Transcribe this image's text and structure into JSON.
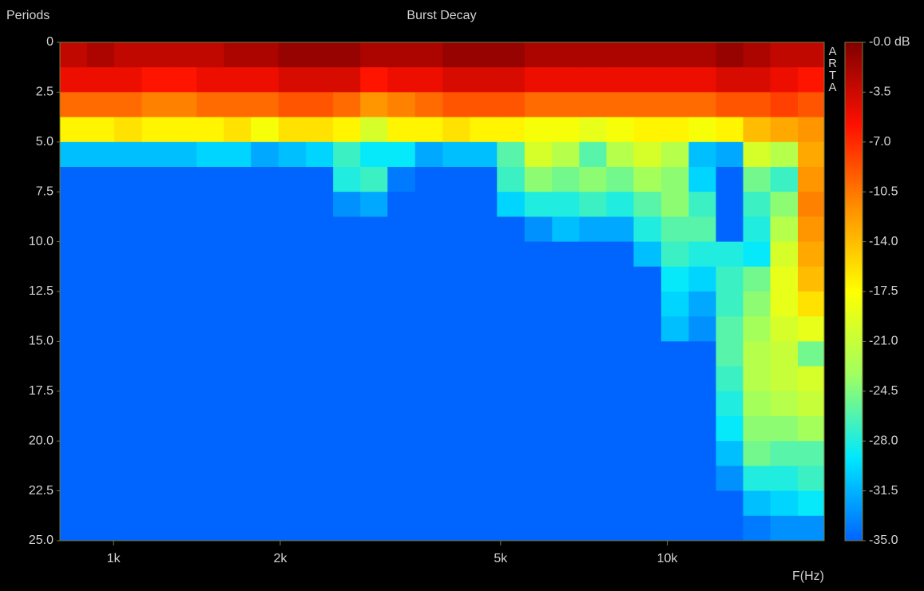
{
  "chart_data": {
    "type": "heatmap",
    "title": "Burst Decay",
    "y_label": "Periods",
    "x_label": "F(Hz)",
    "watermark": "ARTA",
    "x_log": true,
    "xlim": [
      800,
      19200
    ],
    "xticks": [
      {
        "value": 1000,
        "label": "1k"
      },
      {
        "value": 2000,
        "label": "2k"
      },
      {
        "value": 5000,
        "label": "5k"
      },
      {
        "value": 10000,
        "label": "10k"
      }
    ],
    "ylim": [
      0,
      25
    ],
    "y_inverted": true,
    "yticks": [
      0,
      2.5,
      {
        "value": 5,
        "label": "5.0"
      },
      7.5,
      {
        "value": 10,
        "label": "10.0"
      },
      12.5,
      {
        "value": 15,
        "label": "15.0"
      },
      17.5,
      {
        "value": 20,
        "label": "20.0"
      },
      22.5,
      {
        "value": 25,
        "label": "25.0"
      }
    ],
    "zlim": [
      -35,
      0
    ],
    "zticks": [
      {
        "value": 0,
        "label": "-0.0 dB"
      },
      -3.5,
      {
        "value": -7,
        "label": "-7.0"
      },
      -10.5,
      {
        "value": -14,
        "label": "-14.0"
      },
      -17.5,
      {
        "value": -21,
        "label": "-21.0"
      },
      -24.5,
      {
        "value": -28,
        "label": "-28.0"
      },
      -31.5,
      {
        "value": -35,
        "label": "-35.0"
      }
    ],
    "colormap": [
      "#0064ff",
      "#00e8ff",
      "#a0ff60",
      "#ffff00",
      "#ff9000",
      "#ff1000",
      "#800000"
    ],
    "x": [
      846,
      948,
      1061,
      1192,
      1335,
      1494,
      1673,
      1873,
      2104,
      2355,
      2637,
      2953,
      3306,
      3714,
      4157,
      4654,
      5211,
      5854,
      6554,
      7338,
      8216,
      9199,
      10333,
      11570,
      12954,
      14504,
      16238,
      18238
    ],
    "y": [
      0.625,
      1.875,
      3.125,
      4.375,
      5.625,
      6.875,
      8.125,
      9.375,
      10.625,
      11.875,
      13.125,
      14.375,
      15.625,
      16.875,
      18.125,
      19.375,
      20.625,
      21.875,
      23.125,
      24.375
    ],
    "z": [
      [
        -3,
        -5,
        -10,
        -17,
        -31,
        -35,
        -35,
        -35,
        -35,
        -35,
        -35,
        -35,
        -35,
        -35,
        -35,
        -35,
        -35,
        -35,
        -35,
        -35
      ],
      [
        -2,
        -5,
        -10,
        -17,
        -31,
        -35,
        -35,
        -35,
        -35,
        -35,
        -35,
        -35,
        -35,
        -35,
        -35,
        -35,
        -35,
        -35,
        -35,
        -35
      ],
      [
        -3,
        -5,
        -10,
        -16,
        -31,
        -35,
        -35,
        -35,
        -35,
        -35,
        -35,
        -35,
        -35,
        -35,
        -35,
        -35,
        -35,
        -35,
        -35,
        -35
      ],
      [
        -3,
        -6,
        -11,
        -17,
        -31,
        -35,
        -35,
        -35,
        -35,
        -35,
        -35,
        -35,
        -35,
        -35,
        -35,
        -35,
        -35,
        -35,
        -35,
        -35
      ],
      [
        -3,
        -6,
        -11,
        -17,
        -31,
        -35,
        -35,
        -35,
        -35,
        -35,
        -35,
        -35,
        -35,
        -35,
        -35,
        -35,
        -35,
        -35,
        -35,
        -35
      ],
      [
        -3,
        -5,
        -10,
        -17,
        -30,
        -35,
        -35,
        -35,
        -35,
        -35,
        -35,
        -35,
        -35,
        -35,
        -35,
        -35,
        -35,
        -35,
        -35,
        -35
      ],
      [
        -2,
        -5,
        -10,
        -16,
        -30,
        -35,
        -35,
        -35,
        -35,
        -35,
        -35,
        -35,
        -35,
        -35,
        -35,
        -35,
        -35,
        -35,
        -35,
        -35
      ],
      [
        -2,
        -5,
        -10,
        -18,
        -32,
        -35,
        -35,
        -35,
        -35,
        -35,
        -35,
        -35,
        -35,
        -35,
        -35,
        -35,
        -35,
        -35,
        -35,
        -35
      ],
      [
        -1,
        -4,
        -9,
        -16,
        -31,
        -35,
        -35,
        -35,
        -35,
        -35,
        -35,
        -35,
        -35,
        -35,
        -35,
        -35,
        -35,
        -35,
        -35,
        -35
      ],
      [
        -1,
        -4,
        -9,
        -16,
        -30,
        -35,
        -35,
        -35,
        -35,
        -35,
        -35,
        -35,
        -35,
        -35,
        -35,
        -35,
        -35,
        -35,
        -35,
        -35
      ],
      [
        -1,
        -4,
        -10,
        -17,
        -27,
        -28,
        -33,
        -35,
        -35,
        -35,
        -35,
        -35,
        -35,
        -35,
        -35,
        -35,
        -35,
        -35,
        -35,
        -35
      ],
      [
        -2,
        -6,
        -12,
        -20,
        -29,
        -27,
        -32,
        -35,
        -35,
        -35,
        -35,
        -35,
        -35,
        -35,
        -35,
        -35,
        -35,
        -35,
        -35,
        -35
      ],
      [
        -2,
        -5,
        -11,
        -17,
        -29,
        -34,
        -35,
        -35,
        -35,
        -35,
        -35,
        -35,
        -35,
        -35,
        -35,
        -35,
        -35,
        -35,
        -35,
        -35
      ],
      [
        -2,
        -5,
        -10,
        -17,
        -32,
        -35,
        -35,
        -35,
        -35,
        -35,
        -35,
        -35,
        -35,
        -35,
        -35,
        -35,
        -35,
        -35,
        -35,
        -35
      ],
      [
        -1,
        -4,
        -9,
        -16,
        -31,
        -35,
        -35,
        -35,
        -35,
        -35,
        -35,
        -35,
        -35,
        -35,
        -35,
        -35,
        -35,
        -35,
        -35,
        -35
      ],
      [
        -1,
        -4,
        -9,
        -17,
        -31,
        -35,
        -35,
        -35,
        -35,
        -35,
        -35,
        -35,
        -35,
        -35,
        -35,
        -35,
        -35,
        -35,
        -35,
        -35
      ],
      [
        -1,
        -4,
        -9,
        -17,
        -26,
        -27,
        -30,
        -35,
        -35,
        -35,
        -35,
        -35,
        -35,
        -35,
        -35,
        -35,
        -35,
        -35,
        -35,
        -35
      ],
      [
        -2,
        -5,
        -10,
        -18,
        -20,
        -24,
        -28,
        -33,
        -35,
        -35,
        -35,
        -35,
        -35,
        -35,
        -35,
        -35,
        -35,
        -35,
        -35,
        -35
      ],
      [
        -2,
        -5,
        -10,
        -18,
        -22,
        -25,
        -28,
        -31,
        -35,
        -35,
        -35,
        -35,
        -35,
        -35,
        -35,
        -35,
        -35,
        -35,
        -35,
        -35
      ],
      [
        -2,
        -5,
        -10,
        -19,
        -26,
        -24,
        -27,
        -32,
        -35,
        -35,
        -35,
        -35,
        -35,
        -35,
        -35,
        -35,
        -35,
        -35,
        -35,
        -35
      ],
      [
        -2,
        -5,
        -10,
        -18,
        -22,
        -25,
        -28,
        -32,
        -35,
        -35,
        -35,
        -35,
        -35,
        -35,
        -35,
        -35,
        -35,
        -35,
        -35,
        -35
      ],
      [
        -2,
        -5,
        -10,
        -17,
        -20,
        -23,
        -26,
        -28,
        -31,
        -35,
        -35,
        -35,
        -35,
        -35,
        -35,
        -35,
        -35,
        -35,
        -35,
        -35
      ],
      [
        -2,
        -5,
        -10,
        -17,
        -22,
        -24,
        -24,
        -26,
        -27,
        -29,
        -30,
        -31,
        -35,
        -35,
        -35,
        -35,
        -35,
        -35,
        -35,
        -35
      ],
      [
        -2,
        -5,
        -10,
        -18,
        -31,
        -30,
        -27,
        -26,
        -28,
        -30,
        -32,
        -33,
        -35,
        -35,
        -35,
        -35,
        -35,
        -35,
        -35,
        -35
      ],
      [
        -1,
        -4,
        -9,
        -17,
        -32,
        -35,
        -35,
        -35,
        -28,
        -27,
        -27,
        -26,
        -26,
        -27,
        -28,
        -29,
        -31,
        -33,
        -35,
        -35
      ],
      [
        -2,
        -4,
        -9,
        -14,
        -20,
        -25,
        -27,
        -28,
        -29,
        -25,
        -24,
        -23,
        -22,
        -22,
        -23,
        -24,
        -25,
        -28,
        -31,
        -34
      ],
      [
        -3,
        -5,
        -8,
        -13,
        -22,
        -27,
        -24,
        -22,
        -20,
        -19,
        -19,
        -20,
        -21,
        -21,
        -22,
        -24,
        -26,
        -28,
        -30,
        -33
      ],
      [
        -3,
        -6,
        -9,
        -12,
        -13,
        -12,
        -11,
        -12,
        -13,
        -14,
        -16,
        -19,
        -25,
        -20,
        -21,
        -23,
        -26,
        -27,
        -29,
        -33
      ]
    ]
  }
}
